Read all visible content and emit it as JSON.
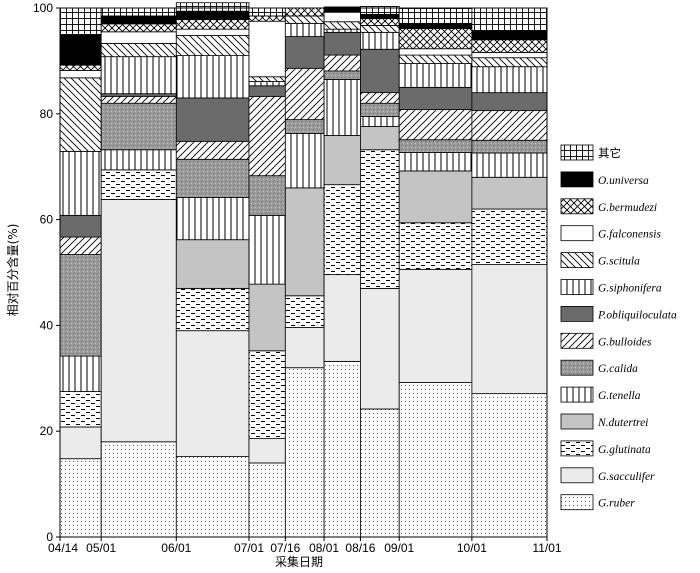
{
  "chart_data": {
    "type": "stacked-bar",
    "title": "",
    "ylabel": "相对百分含量(%)",
    "xlabel": "采集日期",
    "ylim": [
      0,
      100
    ],
    "yticks": [
      0,
      20,
      40,
      60,
      80,
      100
    ],
    "dates": [
      "04/14",
      "05/01",
      "06/01",
      "07/01",
      "07/16",
      "08/01",
      "08/16",
      "09/01",
      "10/01",
      "11/01"
    ],
    "date_positions": [
      0,
      17,
      48,
      78,
      93,
      109,
      124,
      140,
      170,
      201
    ],
    "legend_order": [
      "其它",
      "O.universa",
      "G.bermudezi",
      "G.falconensis",
      "G.scitula",
      "G.siphonifera",
      "P.obliquiloculata",
      "G.bulloides",
      "G.calida",
      "G.tenella",
      "N.dutertrei",
      "G.glutinata",
      "G.sacculifer",
      "G.ruber"
    ],
    "species_patterns": {
      "G.ruber": "dots",
      "G.sacculifer": "lightgray",
      "G.glutinata": "dashes",
      "N.dutertrei": "midgray",
      "G.tenella": "vlines",
      "G.calida": "graydots",
      "G.bulloides": "fdiag",
      "P.obliquiloculata": "darkgray",
      "G.siphonifera": "vlines",
      "G.scitula": "bdiag",
      "G.falconensis": "white",
      "G.bermudezi": "crosshatch",
      "O.universa": "black",
      "其它": "grid"
    },
    "bar_order": [
      "G.ruber",
      "G.sacculifer",
      "G.glutinata",
      "N.dutertrei",
      "G.tenella",
      "G.calida",
      "G.bulloides",
      "P.obliquiloculata",
      "G.siphonifera",
      "G.scitula",
      "G.falconensis",
      "G.bermudezi",
      "O.universa",
      "其它"
    ],
    "bars": [
      {
        "start": 0,
        "end": 17,
        "values": {
          "G.ruber": 14.8,
          "G.sacculifer": 6.0,
          "G.glutinata": 6.7,
          "N.dutertrei": 0,
          "G.tenella": 6.7,
          "G.calida": 19.2,
          "G.bulloides": 3.3,
          "P.obliquiloculata": 4.1,
          "G.siphonifera": 12.1,
          "G.scitula": 13.9,
          "G.falconensis": 1.4,
          "G.bermudezi": 1.0,
          "O.universa": 5.8,
          "其它": 5.0
        }
      },
      {
        "start": 17,
        "end": 48,
        "values": {
          "G.ruber": 18.0,
          "G.sacculifer": 45.8,
          "G.glutinata": 5.6,
          "N.dutertrei": 0,
          "G.tenella": 3.8,
          "G.calida": 8.8,
          "G.bulloides": 1.3,
          "P.obliquiloculata": 0.5,
          "G.siphonifera": 7.0,
          "G.scitula": 2.5,
          "G.falconensis": 2.2,
          "G.bermudezi": 1.5,
          "O.universa": 1.5,
          "其它": 1.5
        }
      },
      {
        "start": 48,
        "end": 78,
        "values": {
          "G.ruber": 15.2,
          "G.sacculifer": 23.8,
          "G.glutinata": 8.0,
          "N.dutertrei": 9.2,
          "G.tenella": 8.0,
          "G.calida": 7.2,
          "G.bulloides": 3.4,
          "P.obliquiloculata": 8.2,
          "G.siphonifera": 8.0,
          "G.scitula": 3.8,
          "G.falconensis": 1.2,
          "G.bermudezi": 1.8,
          "O.universa": 1.6,
          "其它": 1.6
        }
      },
      {
        "start": 78,
        "end": 93,
        "values": {
          "G.ruber": 14.0,
          "G.sacculifer": 4.6,
          "G.glutinata": 16.6,
          "N.dutertrei": 12.6,
          "G.tenella": 13.0,
          "G.calida": 7.5,
          "G.bulloides": 15.0,
          "P.obliquiloculata": 2.0,
          "G.siphonifera": 0.8,
          "G.scitula": 0.9,
          "G.falconensis": 10.5,
          "G.bermudezi": 1.0,
          "O.universa": 0,
          "其它": 1.5
        }
      },
      {
        "start": 93,
        "end": 109,
        "values": {
          "G.ruber": 32.0,
          "G.sacculifer": 7.6,
          "G.glutinata": 6.0,
          "N.dutertrei": 20.4,
          "G.tenella": 10.3,
          "G.calida": 2.6,
          "G.bulloides": 9.7,
          "P.obliquiloculata": 6.0,
          "G.siphonifera": 2.5,
          "G.scitula": 1.4,
          "G.falconensis": 0,
          "G.bermudezi": 1.5,
          "O.universa": 0,
          "其它": 0
        }
      },
      {
        "start": 109,
        "end": 124,
        "values": {
          "G.ruber": 33.2,
          "G.sacculifer": 16.4,
          "G.glutinata": 17.0,
          "N.dutertrei": 9.3,
          "G.tenella": 10.6,
          "G.calida": 1.6,
          "G.bulloides": 3.0,
          "P.obliquiloculata": 4.3,
          "G.siphonifera": 0.6,
          "G.scitula": 1.4,
          "G.falconensis": 1.8,
          "G.bermudezi": 0,
          "O.universa": 1.0,
          "其它": 0
        }
      },
      {
        "start": 124,
        "end": 140,
        "values": {
          "G.ruber": 24.2,
          "G.sacculifer": 22.8,
          "G.glutinata": 26.2,
          "N.dutertrei": 4.4,
          "G.tenella": 1.9,
          "G.calida": 2.5,
          "G.bulloides": 2.0,
          "P.obliquiloculata": 8.2,
          "G.siphonifera": 3.2,
          "G.scitula": 1.3,
          "G.falconensis": 0,
          "G.bermudezi": 1.3,
          "O.universa": 0.8,
          "其它": 1.5
        }
      },
      {
        "start": 140,
        "end": 170,
        "values": {
          "G.ruber": 29.2,
          "G.sacculifer": 21.4,
          "G.glutinata": 8.8,
          "N.dutertrei": 9.8,
          "G.tenella": 3.5,
          "G.calida": 2.4,
          "G.bulloides": 5.7,
          "P.obliquiloculata": 4.2,
          "G.siphonifera": 4.5,
          "G.scitula": 1.6,
          "G.falconensis": 1.2,
          "G.bermudezi": 3.8,
          "O.universa": 1.0,
          "其它": 2.8
        }
      },
      {
        "start": 170,
        "end": 201,
        "values": {
          "G.ruber": 27.1,
          "G.sacculifer": 24.4,
          "G.glutinata": 10.5,
          "N.dutertrei": 6.0,
          "G.tenella": 4.6,
          "G.calida": 2.4,
          "G.bulloides": 5.6,
          "P.obliquiloculata": 3.4,
          "G.siphonifera": 4.9,
          "G.scitula": 1.7,
          "G.falconensis": 1.0,
          "G.bermudezi": 2.4,
          "O.universa": 1.7,
          "其它": 4.3
        }
      }
    ]
  }
}
